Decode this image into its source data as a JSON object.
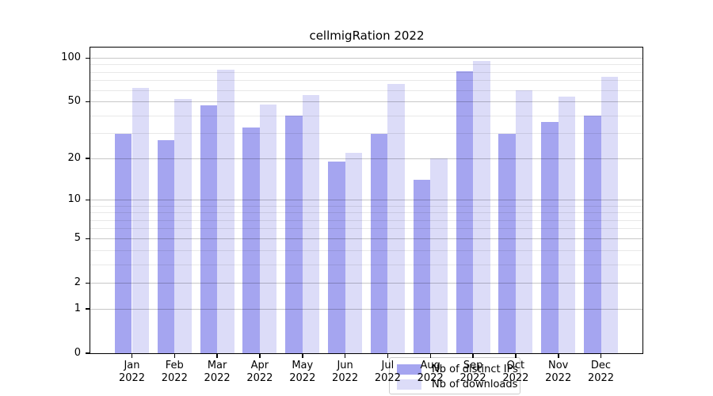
{
  "chart_data": {
    "type": "bar",
    "title": "cellmigRation 2022",
    "categories": [
      "Jan",
      "Feb",
      "Mar",
      "Apr",
      "May",
      "Jun",
      "Jul",
      "Aug",
      "Sep",
      "Oct",
      "Nov",
      "Dec"
    ],
    "year": "2022",
    "series": [
      {
        "name": "Nb of distinct IPs",
        "color": "#a5a5f0",
        "values": [
          30,
          27,
          47,
          33,
          40,
          19,
          30,
          14,
          81,
          30,
          36,
          40
        ]
      },
      {
        "name": "Nb of downloads",
        "color": "#dcdcf8",
        "values": [
          62,
          52,
          83,
          48,
          56,
          22,
          66,
          20,
          95,
          60,
          54,
          74
        ]
      }
    ],
    "yscale": "log1p",
    "ylim": [
      0,
      118
    ],
    "yticks": [
      0,
      1,
      2,
      5,
      10,
      20,
      50,
      100
    ],
    "yticks_minor": [
      3,
      4,
      6,
      7,
      8,
      9,
      30,
      40,
      60,
      70,
      80,
      90
    ],
    "xlabel": "",
    "ylabel": "",
    "grid": true,
    "legend_position": "lower center inside"
  }
}
